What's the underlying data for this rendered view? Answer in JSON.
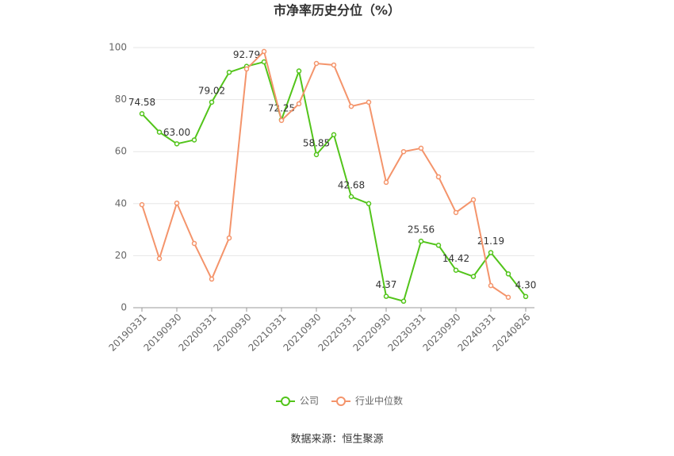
{
  "chart_data": {
    "type": "line",
    "title": "市净率历史分位（%）",
    "categories": [
      "20190331",
      null,
      "20190930",
      null,
      "20200331",
      null,
      "20200930",
      null,
      "20210331",
      null,
      "20210930",
      null,
      "20220331",
      null,
      "20220930",
      null,
      "20230331",
      null,
      "20230930",
      null,
      "20240331",
      null,
      "20240826"
    ],
    "series": [
      {
        "name": "公司",
        "color": "#52c41a",
        "values": [
          74.58,
          67.5,
          63.0,
          64.5,
          79.02,
          90.5,
          92.79,
          94.5,
          72.25,
          91,
          58.85,
          66.5,
          42.68,
          40,
          4.37,
          2.5,
          25.56,
          24,
          14.42,
          12,
          21.19,
          13,
          4.3
        ],
        "value_labels": [
          "74.58",
          null,
          "63.00",
          null,
          "79.02",
          null,
          "92.79",
          null,
          "72.25",
          null,
          "58.85",
          null,
          "42.68",
          null,
          "4.37",
          null,
          "25.56",
          null,
          "14.42",
          null,
          "21.19",
          null,
          "4.30"
        ]
      },
      {
        "name": "行业中位数",
        "color": "#f4946b",
        "values": [
          39.6,
          18.9,
          40.2,
          24.7,
          11,
          26.8,
          91.8,
          98.5,
          72,
          78.4,
          93.9,
          93.3,
          77.4,
          79,
          48.2,
          60,
          61.3,
          50.3,
          36.6,
          41.5,
          8.5,
          4,
          null
        ]
      }
    ],
    "ylim": [
      0,
      100
    ],
    "yticks": [
      0,
      20,
      40,
      60,
      80,
      100
    ],
    "grid": true,
    "source": "数据来源：恒生聚源"
  }
}
